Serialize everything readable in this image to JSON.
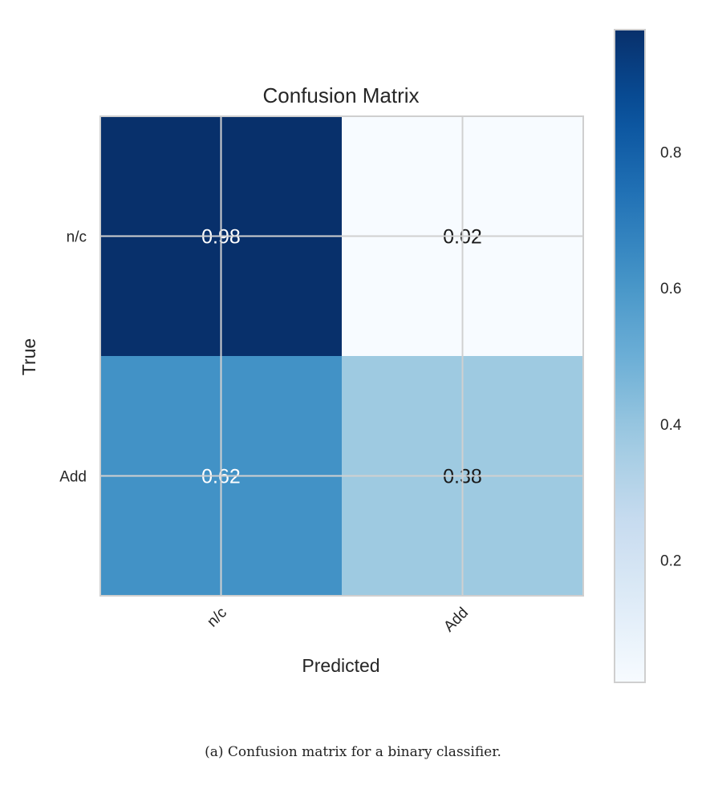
{
  "chart_data": {
    "type": "heatmap",
    "title": "Confusion Matrix",
    "xlabel": "Predicted",
    "ylabel": "True",
    "x_categories": [
      "n/c",
      "Add"
    ],
    "y_categories": [
      "n/c",
      "Add"
    ],
    "values": [
      [
        0.98,
        0.02
      ],
      [
        0.62,
        0.38
      ]
    ],
    "value_labels": [
      [
        "0.98",
        "0.02"
      ],
      [
        "0.62",
        "0.38"
      ]
    ],
    "colormap": "Blues",
    "colorbar": {
      "range": [
        0.02,
        0.98
      ],
      "ticks": [
        0.2,
        0.4,
        0.6,
        0.8
      ],
      "tick_labels": [
        "0.2",
        "0.4",
        "0.6",
        "0.8"
      ]
    },
    "grid": true
  },
  "caption": "(a) Confusion matrix for a binary classifier."
}
